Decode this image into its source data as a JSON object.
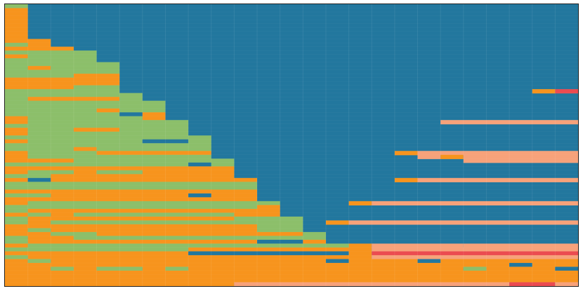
{
  "chart_data": {
    "type": "heatmap",
    "title": "",
    "xlabel": "",
    "ylabel": "",
    "n_cols": 25,
    "n_rows": 66,
    "grid": true,
    "legend": "none",
    "colors": {
      "blue": "#22779e",
      "orange": "#f7941d",
      "green": "#8cbf6a",
      "salmon": "#f7a27a",
      "red": "#eb4b50"
    },
    "default_state": "blue",
    "segments": [
      {
        "row": 0,
        "start": 0,
        "end": 1,
        "state": "green"
      },
      {
        "row": 1,
        "start": 0,
        "end": 1,
        "state": "orange"
      },
      {
        "row": 2,
        "start": 0,
        "end": 1,
        "state": "orange"
      },
      {
        "row": 3,
        "start": 0,
        "end": 1,
        "state": "orange"
      },
      {
        "row": 4,
        "start": 0,
        "end": 1,
        "state": "orange"
      },
      {
        "row": 5,
        "start": 0,
        "end": 1,
        "state": "orange"
      },
      {
        "row": 6,
        "start": 0,
        "end": 1,
        "state": "orange"
      },
      {
        "row": 7,
        "start": 0,
        "end": 1,
        "state": "orange"
      },
      {
        "row": 8,
        "start": 0,
        "end": 1,
        "state": "orange"
      },
      {
        "row": 9,
        "start": 0,
        "end": 2,
        "state": "orange"
      },
      {
        "row": 10,
        "start": 0,
        "end": 1,
        "state": "green"
      },
      {
        "row": 10,
        "start": 1,
        "end": 2,
        "state": "orange"
      },
      {
        "row": 11,
        "start": 0,
        "end": 3,
        "state": "orange"
      },
      {
        "row": 12,
        "start": 0,
        "end": 4,
        "state": "green"
      },
      {
        "row": 13,
        "start": 0,
        "end": 1,
        "state": "orange"
      },
      {
        "row": 13,
        "start": 1,
        "end": 4,
        "state": "green"
      },
      {
        "row": 14,
        "start": 0,
        "end": 4,
        "state": "green"
      },
      {
        "row": 15,
        "start": 0,
        "end": 5,
        "state": "green"
      },
      {
        "row": 16,
        "start": 0,
        "end": 1,
        "state": "green"
      },
      {
        "row": 16,
        "start": 1,
        "end": 2,
        "state": "orange"
      },
      {
        "row": 16,
        "start": 2,
        "end": 5,
        "state": "green"
      },
      {
        "row": 17,
        "start": 0,
        "end": 5,
        "state": "green"
      },
      {
        "row": 18,
        "start": 0,
        "end": 3,
        "state": "green"
      },
      {
        "row": 18,
        "start": 3,
        "end": 5,
        "state": "orange"
      },
      {
        "row": 19,
        "start": 0,
        "end": 5,
        "state": "orange"
      },
      {
        "row": 20,
        "start": 0,
        "end": 5,
        "state": "orange"
      },
      {
        "row": 21,
        "start": 0,
        "end": 3,
        "state": "orange"
      },
      {
        "row": 21,
        "start": 3,
        "end": 5,
        "state": "green"
      },
      {
        "row": 22,
        "start": 0,
        "end": 5,
        "state": "green"
      },
      {
        "row": 22,
        "start": 23,
        "end": 24,
        "state": "orange"
      },
      {
        "row": 22,
        "start": 24,
        "end": 25,
        "state": "red"
      },
      {
        "row": 23,
        "start": 0,
        "end": 6,
        "state": "green"
      },
      {
        "row": 24,
        "start": 0,
        "end": 1,
        "state": "green"
      },
      {
        "row": 24,
        "start": 1,
        "end": 5,
        "state": "orange"
      },
      {
        "row": 24,
        "start": 5,
        "end": 6,
        "state": "green"
      },
      {
        "row": 25,
        "start": 0,
        "end": 7,
        "state": "green"
      },
      {
        "row": 26,
        "start": 0,
        "end": 7,
        "state": "green"
      },
      {
        "row": 27,
        "start": 0,
        "end": 4,
        "state": "green"
      },
      {
        "row": 27,
        "start": 4,
        "end": 5,
        "state": "orange"
      },
      {
        "row": 27,
        "start": 5,
        "end": 7,
        "state": "green"
      },
      {
        "row": 28,
        "start": 0,
        "end": 5,
        "state": "green"
      },
      {
        "row": 28,
        "start": 5,
        "end": 6,
        "state": "blue"
      },
      {
        "row": 28,
        "start": 6,
        "end": 7,
        "state": "orange"
      },
      {
        "row": 29,
        "start": 0,
        "end": 1,
        "state": "orange"
      },
      {
        "row": 29,
        "start": 1,
        "end": 6,
        "state": "green"
      },
      {
        "row": 29,
        "start": 6,
        "end": 7,
        "state": "orange"
      },
      {
        "row": 30,
        "start": 0,
        "end": 1,
        "state": "orange"
      },
      {
        "row": 30,
        "start": 1,
        "end": 8,
        "state": "green"
      },
      {
        "row": 30,
        "start": 19,
        "end": 25,
        "state": "salmon"
      },
      {
        "row": 31,
        "start": 0,
        "end": 8,
        "state": "green"
      },
      {
        "row": 32,
        "start": 0,
        "end": 1,
        "state": "orange"
      },
      {
        "row": 32,
        "start": 1,
        "end": 3,
        "state": "green"
      },
      {
        "row": 32,
        "start": 3,
        "end": 5,
        "state": "orange"
      },
      {
        "row": 32,
        "start": 5,
        "end": 8,
        "state": "green"
      },
      {
        "row": 33,
        "start": 0,
        "end": 1,
        "state": "orange"
      },
      {
        "row": 33,
        "start": 1,
        "end": 8,
        "state": "green"
      },
      {
        "row": 34,
        "start": 0,
        "end": 9,
        "state": "green"
      },
      {
        "row": 35,
        "start": 0,
        "end": 1,
        "state": "orange"
      },
      {
        "row": 35,
        "start": 1,
        "end": 6,
        "state": "green"
      },
      {
        "row": 35,
        "start": 6,
        "end": 8,
        "state": "blue"
      },
      {
        "row": 35,
        "start": 8,
        "end": 9,
        "state": "green"
      },
      {
        "row": 36,
        "start": 0,
        "end": 9,
        "state": "green"
      },
      {
        "row": 37,
        "start": 0,
        "end": 3,
        "state": "green"
      },
      {
        "row": 37,
        "start": 3,
        "end": 4,
        "state": "orange"
      },
      {
        "row": 37,
        "start": 4,
        "end": 9,
        "state": "green"
      },
      {
        "row": 38,
        "start": 0,
        "end": 1,
        "state": "orange"
      },
      {
        "row": 38,
        "start": 1,
        "end": 4,
        "state": "green"
      },
      {
        "row": 38,
        "start": 4,
        "end": 9,
        "state": "orange"
      },
      {
        "row": 38,
        "start": 17,
        "end": 18,
        "state": "orange"
      },
      {
        "row": 38,
        "start": 18,
        "end": 25,
        "state": "salmon"
      },
      {
        "row": 39,
        "start": 0,
        "end": 1,
        "state": "orange"
      },
      {
        "row": 39,
        "start": 1,
        "end": 9,
        "state": "green"
      },
      {
        "row": 39,
        "start": 18,
        "end": 19,
        "state": "salmon"
      },
      {
        "row": 39,
        "start": 19,
        "end": 20,
        "state": "orange"
      },
      {
        "row": 39,
        "start": 20,
        "end": 25,
        "state": "salmon"
      },
      {
        "row": 40,
        "start": 0,
        "end": 3,
        "state": "orange"
      },
      {
        "row": 40,
        "start": 3,
        "end": 10,
        "state": "green"
      },
      {
        "row": 40,
        "start": 20,
        "end": 25,
        "state": "salmon"
      },
      {
        "row": 41,
        "start": 0,
        "end": 8,
        "state": "green"
      },
      {
        "row": 41,
        "start": 8,
        "end": 9,
        "state": "blue"
      },
      {
        "row": 41,
        "start": 9,
        "end": 10,
        "state": "green"
      },
      {
        "row": 42,
        "start": 0,
        "end": 10,
        "state": "orange"
      },
      {
        "row": 43,
        "start": 0,
        "end": 1,
        "state": "orange"
      },
      {
        "row": 43,
        "start": 1,
        "end": 3,
        "state": "green"
      },
      {
        "row": 43,
        "start": 3,
        "end": 4,
        "state": "orange"
      },
      {
        "row": 43,
        "start": 4,
        "end": 6,
        "state": "green"
      },
      {
        "row": 43,
        "start": 6,
        "end": 10,
        "state": "orange"
      },
      {
        "row": 44,
        "start": 0,
        "end": 2,
        "state": "green"
      },
      {
        "row": 44,
        "start": 2,
        "end": 10,
        "state": "orange"
      },
      {
        "row": 45,
        "start": 0,
        "end": 1,
        "state": "orange"
      },
      {
        "row": 45,
        "start": 1,
        "end": 2,
        "state": "blue"
      },
      {
        "row": 45,
        "start": 2,
        "end": 11,
        "state": "orange"
      },
      {
        "row": 45,
        "start": 17,
        "end": 18,
        "state": "orange"
      },
      {
        "row": 45,
        "start": 18,
        "end": 25,
        "state": "salmon"
      },
      {
        "row": 46,
        "start": 0,
        "end": 11,
        "state": "green"
      },
      {
        "row": 47,
        "start": 0,
        "end": 11,
        "state": "green"
      },
      {
        "row": 48,
        "start": 0,
        "end": 11,
        "state": "orange"
      },
      {
        "row": 49,
        "start": 0,
        "end": 2,
        "state": "green"
      },
      {
        "row": 49,
        "start": 2,
        "end": 8,
        "state": "orange"
      },
      {
        "row": 49,
        "start": 8,
        "end": 9,
        "state": "blue"
      },
      {
        "row": 49,
        "start": 9,
        "end": 11,
        "state": "orange"
      },
      {
        "row": 50,
        "start": 0,
        "end": 11,
        "state": "orange"
      },
      {
        "row": 51,
        "start": 0,
        "end": 1,
        "state": "orange"
      },
      {
        "row": 51,
        "start": 1,
        "end": 12,
        "state": "green"
      },
      {
        "row": 51,
        "start": 15,
        "end": 16,
        "state": "orange"
      },
      {
        "row": 51,
        "start": 16,
        "end": 25,
        "state": "salmon"
      },
      {
        "row": 52,
        "start": 0,
        "end": 11,
        "state": "green"
      },
      {
        "row": 52,
        "start": 11,
        "end": 12,
        "state": "orange"
      },
      {
        "row": 53,
        "start": 0,
        "end": 1,
        "state": "green"
      },
      {
        "row": 53,
        "start": 1,
        "end": 12,
        "state": "orange"
      },
      {
        "row": 54,
        "start": 0,
        "end": 1,
        "state": "orange"
      },
      {
        "row": 54,
        "start": 1,
        "end": 2,
        "state": "green"
      },
      {
        "row": 54,
        "start": 2,
        "end": 3,
        "state": "orange"
      },
      {
        "row": 54,
        "start": 3,
        "end": 10,
        "state": "green"
      },
      {
        "row": 54,
        "start": 10,
        "end": 12,
        "state": "orange"
      },
      {
        "row": 55,
        "start": 0,
        "end": 1,
        "state": "green"
      },
      {
        "row": 55,
        "start": 1,
        "end": 10,
        "state": "orange"
      },
      {
        "row": 55,
        "start": 10,
        "end": 13,
        "state": "green"
      },
      {
        "row": 56,
        "start": 0,
        "end": 1,
        "state": "green"
      },
      {
        "row": 56,
        "start": 1,
        "end": 2,
        "state": "orange"
      },
      {
        "row": 56,
        "start": 2,
        "end": 13,
        "state": "green"
      },
      {
        "row": 56,
        "start": 14,
        "end": 15,
        "state": "orange"
      },
      {
        "row": 56,
        "start": 15,
        "end": 25,
        "state": "salmon"
      },
      {
        "row": 57,
        "start": 0,
        "end": 11,
        "state": "orange"
      },
      {
        "row": 57,
        "start": 11,
        "end": 13,
        "state": "green"
      },
      {
        "row": 58,
        "start": 0,
        "end": 1,
        "state": "orange"
      },
      {
        "row": 58,
        "start": 1,
        "end": 2,
        "state": "green"
      },
      {
        "row": 58,
        "start": 2,
        "end": 11,
        "state": "orange"
      },
      {
        "row": 58,
        "start": 11,
        "end": 13,
        "state": "green"
      },
      {
        "row": 59,
        "start": 0,
        "end": 2,
        "state": "orange"
      },
      {
        "row": 59,
        "start": 2,
        "end": 4,
        "state": "green"
      },
      {
        "row": 59,
        "start": 4,
        "end": 13,
        "state": "orange"
      },
      {
        "row": 59,
        "start": 13,
        "end": 14,
        "state": "green"
      },
      {
        "row": 60,
        "start": 0,
        "end": 1,
        "state": "green"
      },
      {
        "row": 60,
        "start": 1,
        "end": 3,
        "state": "orange"
      },
      {
        "row": 60,
        "start": 3,
        "end": 14,
        "state": "green"
      },
      {
        "row": 61,
        "start": 0,
        "end": 1,
        "state": "green"
      },
      {
        "row": 61,
        "start": 1,
        "end": 11,
        "state": "orange"
      },
      {
        "row": 61,
        "start": 11,
        "end": 13,
        "state": "blue"
      },
      {
        "row": 61,
        "start": 13,
        "end": 14,
        "state": "orange"
      },
      {
        "row": 62,
        "start": 0,
        "end": 1,
        "state": "orange"
      },
      {
        "row": 62,
        "start": 1,
        "end": 15,
        "state": "green"
      },
      {
        "row": 62,
        "start": 15,
        "end": 16,
        "state": "orange"
      },
      {
        "row": 62,
        "start": 16,
        "end": 20,
        "state": "salmon"
      },
      {
        "row": 62,
        "start": 20,
        "end": 25,
        "state": "salmon"
      },
      {
        "row": 63,
        "start": 0,
        "end": 8,
        "state": "green"
      },
      {
        "row": 63,
        "start": 8,
        "end": 15,
        "state": "orange"
      },
      {
        "row": 63,
        "start": 15,
        "end": 16,
        "state": "orange"
      },
      {
        "row": 63,
        "start": 16,
        "end": 25,
        "state": "salmon"
      },
      {
        "row": 64,
        "start": 0,
        "end": 8,
        "state": "orange"
      },
      {
        "row": 64,
        "start": 8,
        "end": 15,
        "state": "blue"
      },
      {
        "row": 64,
        "start": 15,
        "end": 16,
        "state": "orange"
      },
      {
        "row": 64,
        "start": 16,
        "end": 25,
        "state": "red"
      },
      {
        "row": 65,
        "start": 0,
        "end": 1,
        "state": "green"
      },
      {
        "row": 65,
        "start": 1,
        "end": 16,
        "state": "orange"
      },
      {
        "row": 65,
        "start": 16,
        "end": 25,
        "state": "salmon"
      }
    ],
    "blocks": [
      {
        "row_start": 66,
        "row_end": 67,
        "segments": [
          {
            "start": 0,
            "end": 1,
            "state": "orange"
          },
          {
            "start": 1,
            "end": 2,
            "state": "green"
          },
          {
            "start": 2,
            "end": 14,
            "state": "orange"
          },
          {
            "start": 14,
            "end": 15,
            "state": "blue"
          },
          {
            "start": 15,
            "end": 18,
            "state": "orange"
          },
          {
            "start": 18,
            "end": 19,
            "state": "blue"
          },
          {
            "start": 19,
            "end": 25,
            "state": "orange"
          }
        ]
      },
      {
        "row_start": 67,
        "row_end": 68,
        "segments": [
          {
            "start": 0,
            "end": 22,
            "state": "orange"
          },
          {
            "start": 22,
            "end": 23,
            "state": "blue"
          },
          {
            "start": 23,
            "end": 25,
            "state": "orange"
          }
        ]
      },
      {
        "row_start": 68,
        "row_end": 69,
        "segments": [
          {
            "start": 0,
            "end": 2,
            "state": "orange"
          },
          {
            "start": 2,
            "end": 3,
            "state": "green"
          },
          {
            "start": 3,
            "end": 4,
            "state": "orange"
          },
          {
            "start": 4,
            "end": 6,
            "state": "green"
          },
          {
            "start": 6,
            "end": 7,
            "state": "orange"
          },
          {
            "start": 7,
            "end": 8,
            "state": "green"
          },
          {
            "start": 8,
            "end": 20,
            "state": "orange"
          },
          {
            "start": 20,
            "end": 21,
            "state": "green"
          },
          {
            "start": 21,
            "end": 24,
            "state": "orange"
          },
          {
            "start": 24,
            "end": 25,
            "state": "blue"
          }
        ]
      },
      {
        "row_start": 69,
        "row_end": 72,
        "segments": [
          {
            "start": 0,
            "end": 25,
            "state": "orange"
          }
        ]
      },
      {
        "row_start": 72,
        "row_end": 73,
        "segments": [
          {
            "start": 0,
            "end": 10,
            "state": "orange"
          },
          {
            "start": 10,
            "end": 22,
            "state": "salmon"
          },
          {
            "start": 22,
            "end": 24,
            "state": "red"
          },
          {
            "start": 24,
            "end": 25,
            "state": "salmon"
          }
        ]
      }
    ],
    "total_rows": 73
  }
}
